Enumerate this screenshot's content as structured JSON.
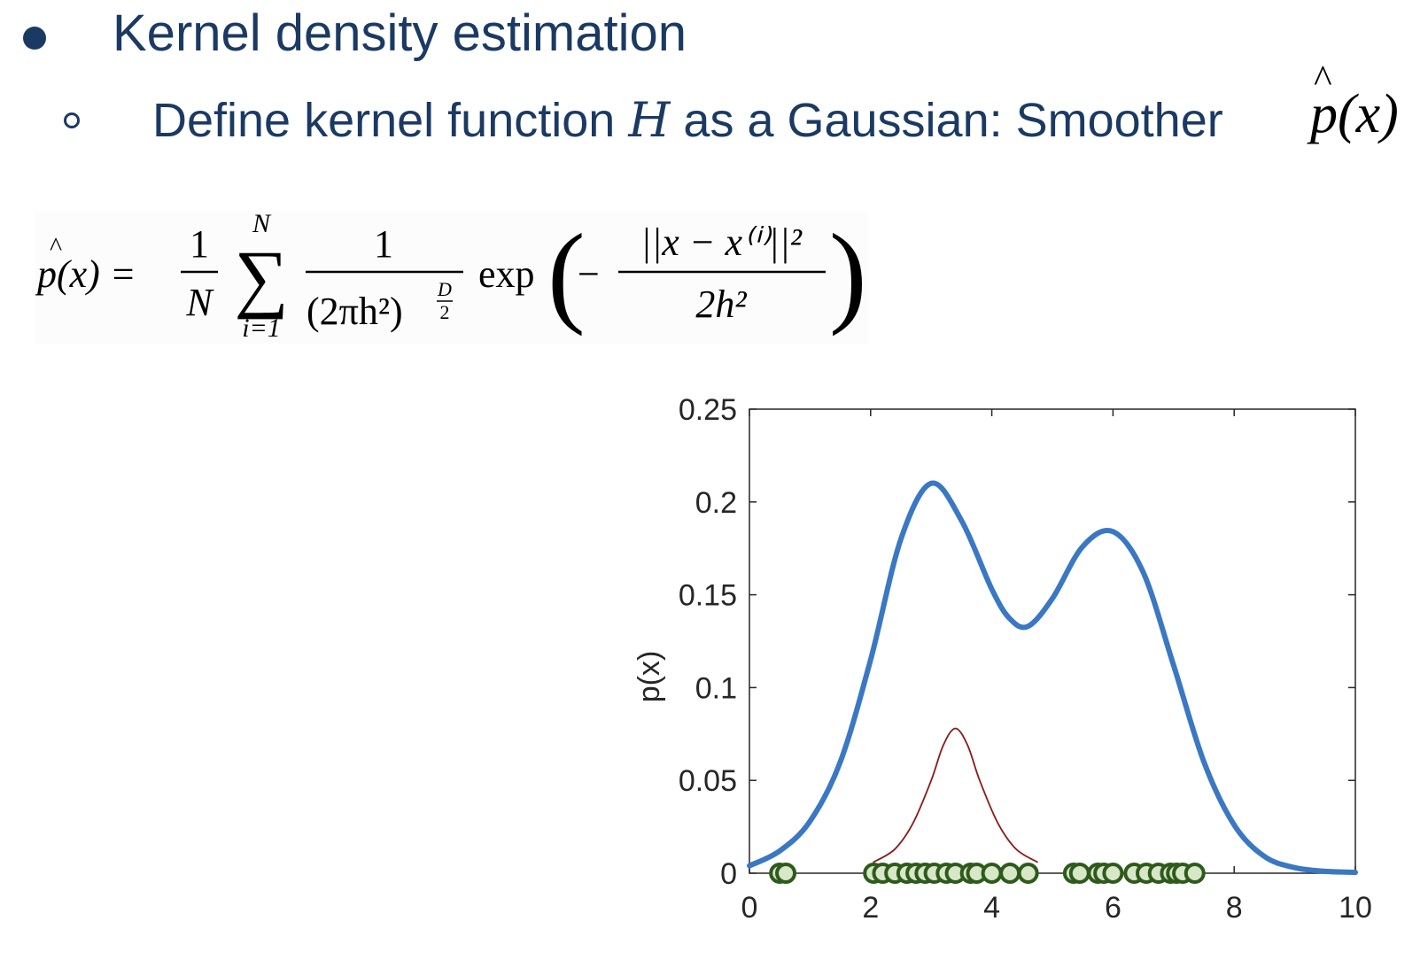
{
  "slide": {
    "heading": "Kernel density estimation",
    "subheading_prefix": "Define kernel function ",
    "subheading_var": "H",
    "subheading_suffix": " as a Gaussian: Smoother ",
    "subheading_math": "p(x)"
  },
  "formula": {
    "lhs": "p(x) =",
    "frac1_num": "1",
    "frac1_den": "N",
    "sum_upper": "N",
    "sum_lower": "i=1",
    "frac2_num": "1",
    "frac2_den": "(2πh²)",
    "frac2_exp_num": "D",
    "frac2_exp_den": "2",
    "exp": "exp",
    "frac3_num": "||x − x⁽ⁱ⁾||²",
    "frac3_den": "2h²"
  },
  "chart_data": {
    "type": "line",
    "ylabel": "p(x)",
    "xlim": [
      0,
      10
    ],
    "ylim": [
      0,
      0.25
    ],
    "xticks": [
      0,
      2,
      4,
      6,
      8,
      10
    ],
    "xtick_labels": [
      "0",
      "2",
      "4",
      "6",
      "8",
      "10"
    ],
    "yticks": [
      0,
      0.05,
      0.1,
      0.15,
      0.2,
      0.25
    ],
    "ytick_labels": [
      "0",
      "0.05",
      "0.1",
      "0.15",
      "0.2",
      "0.25"
    ],
    "grid": false,
    "series": [
      {
        "role": "density",
        "color": "#3a78c3",
        "x": [
          0,
          0.5,
          1,
          1.5,
          2,
          2.5,
          3,
          3.5,
          4,
          4.3,
          4.6,
          5,
          5.5,
          6,
          6.5,
          7,
          7.5,
          8,
          8.5,
          9,
          9.5,
          10
        ],
        "y": [
          0.004,
          0.012,
          0.028,
          0.06,
          0.115,
          0.18,
          0.21,
          0.19,
          0.153,
          0.137,
          0.133,
          0.148,
          0.176,
          0.184,
          0.162,
          0.112,
          0.06,
          0.026,
          0.009,
          0.003,
          0.001,
          0.0005
        ]
      },
      {
        "role": "single kernel",
        "color": "#8b1a1a",
        "x": [
          2.05,
          2.4,
          2.7,
          3.0,
          3.2,
          3.4,
          3.6,
          3.8,
          4.1,
          4.4,
          4.75
        ],
        "y": [
          0.006,
          0.013,
          0.027,
          0.05,
          0.069,
          0.078,
          0.069,
          0.05,
          0.027,
          0.013,
          0.006
        ]
      }
    ],
    "samples": {
      "color": "#2e5a1c",
      "fill": "#d7e7c8",
      "x": [
        0.5,
        0.6,
        2.05,
        2.2,
        2.4,
        2.6,
        2.75,
        2.9,
        3.05,
        3.25,
        3.4,
        3.65,
        3.75,
        4.0,
        4.3,
        4.6,
        5.35,
        5.45,
        5.75,
        5.85,
        6.0,
        6.35,
        6.55,
        6.75,
        6.95,
        7.05,
        7.15,
        7.35
      ]
    }
  }
}
